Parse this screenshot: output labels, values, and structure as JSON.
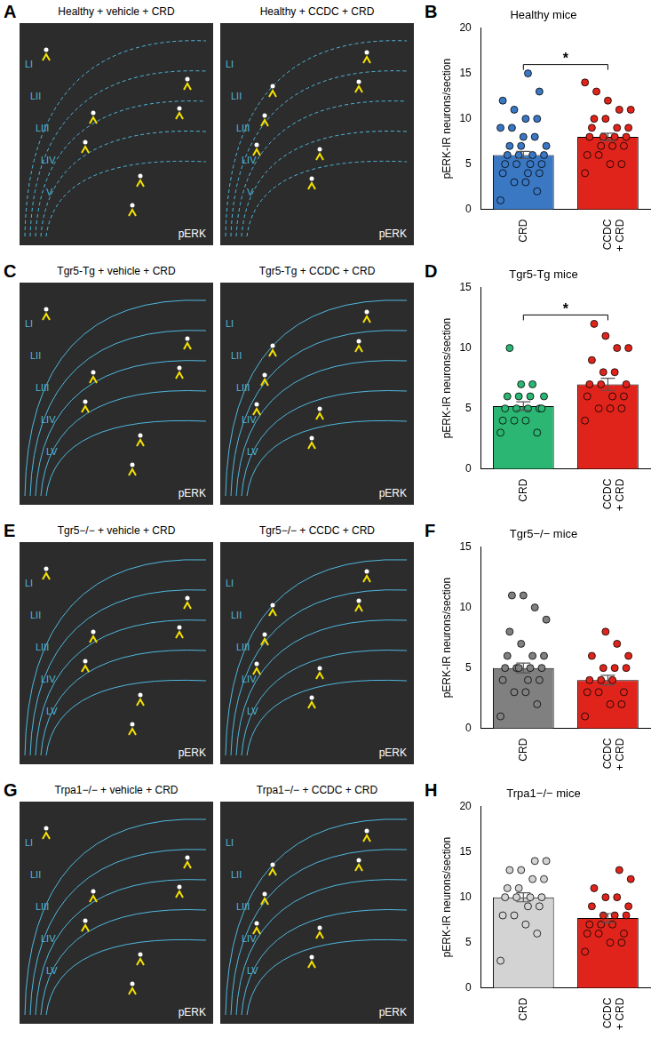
{
  "figure": {
    "rows": [
      {
        "image_letter": "A",
        "chart_letter": "B",
        "images": [
          {
            "title": "Healthy + vehicle + CRD",
            "layers": [
              "LI",
              "LII",
              "LIII",
              "LIV",
              "V"
            ],
            "stain": "pERK"
          },
          {
            "title": "Healthy + CCDC + CRD",
            "layers": [
              "LI",
              "LII",
              "LIII",
              "LIV",
              "V"
            ],
            "stain": "pERK"
          }
        ]
      },
      {
        "image_letter": "C",
        "chart_letter": "D",
        "images": [
          {
            "title": "Tgr5-Tg + vehicle + CRD",
            "layers": [
              "LI",
              "LII",
              "LIII",
              "LIV",
              "LV"
            ],
            "stain": "pERK"
          },
          {
            "title": "Tgr5-Tg + CCDC + CRD",
            "layers": [
              "LI",
              "LII",
              "LIII",
              "LIV",
              "LV"
            ],
            "stain": "pERK"
          }
        ]
      },
      {
        "image_letter": "E",
        "chart_letter": "F",
        "images": [
          {
            "title": "Tgr5−/− + vehicle + CRD",
            "layers": [
              "LI",
              "LII",
              "LIII",
              "LIV",
              "LV"
            ],
            "stain": "pERK"
          },
          {
            "title": "Tgr5−/− + CCDC + CRD",
            "layers": [
              "LI",
              "LII",
              "LIII",
              "LIV",
              "LV"
            ],
            "stain": "pERK"
          }
        ]
      },
      {
        "image_letter": "G",
        "chart_letter": "H",
        "images": [
          {
            "title": "Trpa1−/− + vehicle + CRD",
            "layers": [
              "LI",
              "LII",
              "LIII",
              "LIV",
              "LV"
            ],
            "stain": "pERK"
          },
          {
            "title": "Trpa1−/− + CCDC + CRD",
            "layers": [
              "LI",
              "LII",
              "LIII",
              "LIV",
              "LV"
            ],
            "stain": "pERK"
          }
        ]
      }
    ]
  },
  "chart_data": [
    {
      "type": "bar",
      "title": "Healthy mice",
      "ylabel": "pERK-IR neurons/section",
      "categories": [
        "CRD",
        "CCDC + CRD"
      ],
      "values": [
        6,
        8
      ],
      "errors": [
        0.4,
        0.4
      ],
      "colors": [
        "#3a78c4",
        "#e0241b"
      ],
      "points": [
        [
          1,
          2,
          3,
          3,
          4,
          4,
          4,
          5,
          5,
          5,
          5,
          6,
          6,
          6,
          6,
          7,
          7,
          7,
          8,
          8,
          9,
          9,
          10,
          10,
          11,
          12,
          13,
          15
        ],
        [
          4,
          5,
          5,
          6,
          6,
          7,
          7,
          7,
          8,
          8,
          8,
          8,
          9,
          9,
          9,
          10,
          10,
          11,
          11,
          12,
          13,
          14
        ]
      ],
      "significance": "*",
      "ylim": [
        0,
        20
      ],
      "yticks": [
        0,
        5,
        10,
        15,
        20
      ],
      "grid": false
    },
    {
      "type": "bar",
      "title": "Tgr5-Tg mice",
      "ylabel": "pERK-IR neurons/section",
      "categories": [
        "CRD",
        "CCDC + CRD"
      ],
      "values": [
        5.2,
        7
      ],
      "errors": [
        0.35,
        0.5
      ],
      "colors": [
        "#2bb673",
        "#e0241b"
      ],
      "points": [
        [
          3,
          3,
          4,
          4,
          4,
          5,
          5,
          5,
          5,
          5,
          6,
          6,
          6,
          6,
          7,
          7,
          10
        ],
        [
          4,
          5,
          5,
          5,
          6,
          6,
          6,
          7,
          7,
          7,
          8,
          8,
          9,
          10,
          10,
          11,
          12
        ]
      ],
      "significance": "*",
      "ylim": [
        0,
        15
      ],
      "yticks": [
        0,
        5,
        10,
        15
      ],
      "grid": false
    },
    {
      "type": "bar",
      "title": "Tgr5−/− mice",
      "ylabel": "pERK-IR neurons/section",
      "categories": [
        "CRD",
        "CCDC + CRD"
      ],
      "values": [
        5,
        4
      ],
      "errors": [
        0.4,
        0.4
      ],
      "colors": [
        "#808080",
        "#e0241b"
      ],
      "points": [
        [
          1,
          2,
          3,
          3,
          4,
          4,
          4,
          5,
          5,
          5,
          5,
          5,
          6,
          6,
          6,
          7,
          8,
          9,
          10,
          11,
          11
        ],
        [
          1,
          2,
          2,
          3,
          3,
          3,
          4,
          4,
          4,
          5,
          5,
          5,
          6,
          6,
          7,
          8
        ]
      ],
      "ylim": [
        0,
        15
      ],
      "yticks": [
        0,
        5,
        10,
        15
      ],
      "grid": false
    },
    {
      "type": "bar",
      "title": "Trpa1−/− mice",
      "ylabel": "pERK-IR neurons/section",
      "categories": [
        "CRD",
        "CCDC + CRD"
      ],
      "values": [
        10,
        7.7
      ],
      "errors": [
        0.5,
        0.5
      ],
      "colors": [
        "#d3d3d3",
        "#e0241b"
      ],
      "points": [
        [
          3,
          6,
          7,
          8,
          8,
          9,
          9,
          10,
          10,
          10,
          10,
          11,
          11,
          12,
          12,
          13,
          13,
          14,
          14
        ],
        [
          4,
          5,
          5,
          6,
          6,
          6,
          7,
          7,
          7,
          8,
          8,
          8,
          9,
          9,
          10,
          10,
          11,
          12,
          13
        ]
      ],
      "ylim": [
        0,
        20
      ],
      "yticks": [
        0,
        5,
        10,
        15,
        20
      ],
      "grid": false
    }
  ]
}
